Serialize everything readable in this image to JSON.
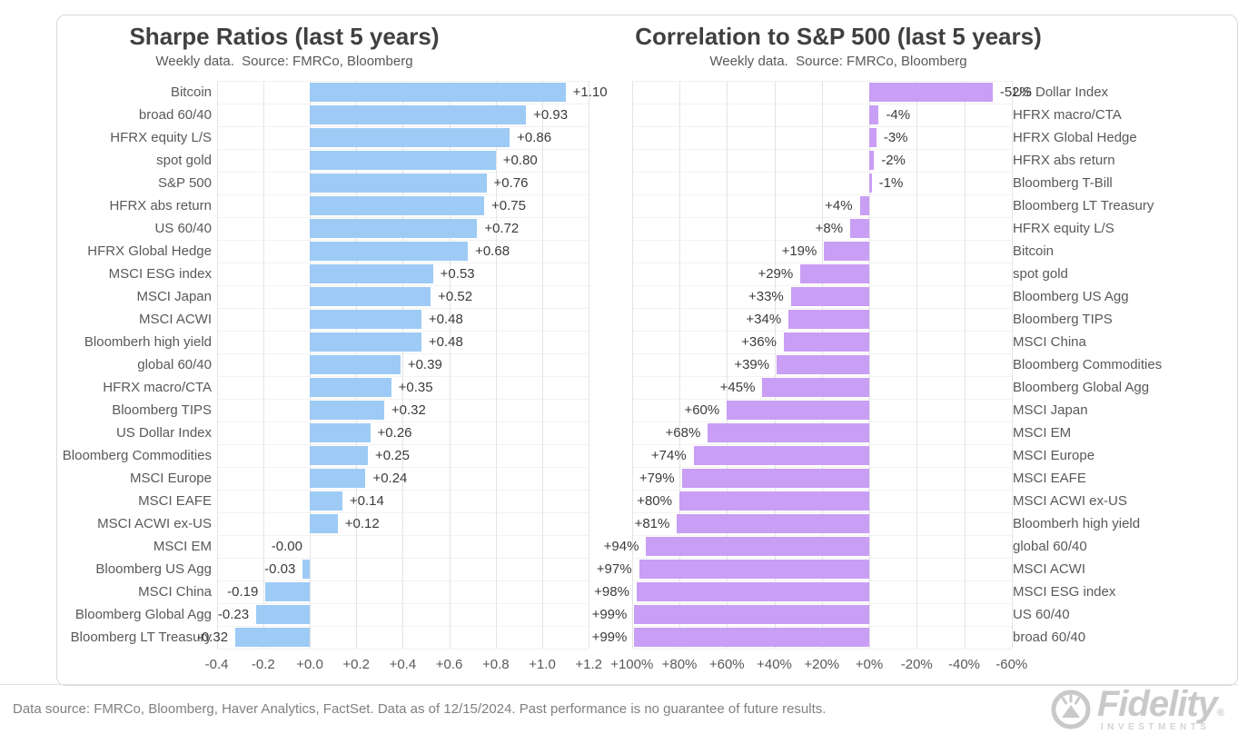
{
  "chart_data": [
    {
      "type": "bar",
      "orientation": "horizontal",
      "title": "Sharpe Ratios (last 5 years)",
      "subtitle": "Weekly data.  Source: FMRCo, Bloomberg",
      "bar_color": "#9DCBF5",
      "axis_reversed": false,
      "grid": true,
      "xlim": [
        -0.4,
        1.2
      ],
      "xticks": [
        {
          "label": "-0.4",
          "value": -0.4
        },
        {
          "label": "-0.2",
          "value": -0.2
        },
        {
          "label": "+0.0",
          "value": 0.0
        },
        {
          "label": "+0.2",
          "value": 0.2
        },
        {
          "label": "+0.4",
          "value": 0.4
        },
        {
          "label": "+0.6",
          "value": 0.6
        },
        {
          "label": "+0.8",
          "value": 0.8
        },
        {
          "label": "+1.0",
          "value": 1.0
        },
        {
          "label": "+1.2",
          "value": 1.2
        }
      ],
      "rows": [
        {
          "category": "Bitcoin",
          "value": 1.1,
          "label": "+1.10"
        },
        {
          "category": "broad 60/40",
          "value": 0.93,
          "label": "+0.93"
        },
        {
          "category": "HFRX equity L/S",
          "value": 0.86,
          "label": "+0.86"
        },
        {
          "category": "spot gold",
          "value": 0.8,
          "label": "+0.80"
        },
        {
          "category": "S&P 500",
          "value": 0.76,
          "label": "+0.76"
        },
        {
          "category": "HFRX abs return",
          "value": 0.75,
          "label": "+0.75"
        },
        {
          "category": "US 60/40",
          "value": 0.72,
          "label": "+0.72"
        },
        {
          "category": "HFRX Global Hedge",
          "value": 0.68,
          "label": "+0.68"
        },
        {
          "category": "MSCI ESG index",
          "value": 0.53,
          "label": "+0.53"
        },
        {
          "category": "MSCI Japan",
          "value": 0.52,
          "label": "+0.52"
        },
        {
          "category": "MSCI ACWI",
          "value": 0.48,
          "label": "+0.48"
        },
        {
          "category": "Bloomberh high yield",
          "value": 0.48,
          "label": "+0.48"
        },
        {
          "category": "global 60/40",
          "value": 0.39,
          "label": "+0.39"
        },
        {
          "category": "HFRX macro/CTA",
          "value": 0.35,
          "label": "+0.35"
        },
        {
          "category": "Bloomberg TIPS",
          "value": 0.32,
          "label": "+0.32"
        },
        {
          "category": "US Dollar Index",
          "value": 0.26,
          "label": "+0.26"
        },
        {
          "category": "Bloomberg Commodities",
          "value": 0.25,
          "label": "+0.25"
        },
        {
          "category": "MSCI Europe",
          "value": 0.24,
          "label": "+0.24"
        },
        {
          "category": "MSCI EAFE",
          "value": 0.14,
          "label": "+0.14"
        },
        {
          "category": "MSCI ACWI ex-US",
          "value": 0.12,
          "label": "+0.12"
        },
        {
          "category": "MSCI EM",
          "value": -0.0,
          "label": "-0.00"
        },
        {
          "category": "Bloomberg US Agg",
          "value": -0.03,
          "label": "-0.03"
        },
        {
          "category": "MSCI China",
          "value": -0.19,
          "label": "-0.19"
        },
        {
          "category": "Bloomberg Global Agg",
          "value": -0.23,
          "label": "-0.23"
        },
        {
          "category": "Bloomberg LT Treasury",
          "value": -0.32,
          "label": "-0.32"
        }
      ]
    },
    {
      "type": "bar",
      "orientation": "horizontal",
      "title": "Correlation to S&P 500 (last 5 years)",
      "subtitle": "Weekly data.  Source: FMRCo, Bloomberg",
      "bar_color": "#C99EF5",
      "axis_reversed": true,
      "grid": true,
      "xlim": [
        100,
        -60
      ],
      "xticks": [
        {
          "label": "+100%",
          "value": 100
        },
        {
          "label": "+80%",
          "value": 80
        },
        {
          "label": "+60%",
          "value": 60
        },
        {
          "label": "+40%",
          "value": 40
        },
        {
          "label": "+20%",
          "value": 20
        },
        {
          "label": "+0%",
          "value": 0
        },
        {
          "label": "-20%",
          "value": -20
        },
        {
          "label": "-40%",
          "value": -40
        },
        {
          "label": "-60%",
          "value": -60
        }
      ],
      "rows": [
        {
          "category": "US Dollar Index",
          "value": -52,
          "label": "-52%"
        },
        {
          "category": "HFRX macro/CTA",
          "value": -4,
          "label": "-4%"
        },
        {
          "category": "HFRX Global Hedge",
          "value": -3,
          "label": "-3%"
        },
        {
          "category": "HFRX abs return",
          "value": -2,
          "label": "-2%"
        },
        {
          "category": "Bloomberg T-Bill",
          "value": -1,
          "label": "-1%"
        },
        {
          "category": "Bloomberg LT Treasury",
          "value": 4,
          "label": "+4%"
        },
        {
          "category": "HFRX equity L/S",
          "value": 8,
          "label": "+8%"
        },
        {
          "category": "Bitcoin",
          "value": 19,
          "label": "+19%"
        },
        {
          "category": "spot gold",
          "value": 29,
          "label": "+29%"
        },
        {
          "category": "Bloomberg US Agg",
          "value": 33,
          "label": "+33%"
        },
        {
          "category": "Bloomberg TIPS",
          "value": 34,
          "label": "+34%"
        },
        {
          "category": "MSCI China",
          "value": 36,
          "label": "+36%"
        },
        {
          "category": "Bloomberg Commodities",
          "value": 39,
          "label": "+39%"
        },
        {
          "category": "Bloomberg Global Agg",
          "value": 45,
          "label": "+45%"
        },
        {
          "category": "MSCI Japan",
          "value": 60,
          "label": "+60%"
        },
        {
          "category": "MSCI EM",
          "value": 68,
          "label": "+68%"
        },
        {
          "category": "MSCI Europe",
          "value": 74,
          "label": "+74%"
        },
        {
          "category": "MSCI EAFE",
          "value": 79,
          "label": "+79%"
        },
        {
          "category": "MSCI ACWI ex-US",
          "value": 80,
          "label": "+80%"
        },
        {
          "category": "Bloomberh high yield",
          "value": 81,
          "label": "+81%"
        },
        {
          "category": "global 60/40",
          "value": 94,
          "label": "+94%"
        },
        {
          "category": "MSCI ACWI",
          "value": 97,
          "label": "+97%"
        },
        {
          "category": "MSCI ESG index",
          "value": 98,
          "label": "+98%"
        },
        {
          "category": "US 60/40",
          "value": 99,
          "label": "+99%"
        },
        {
          "category": "broad 60/40",
          "value": 99,
          "label": "+99%"
        }
      ]
    }
  ],
  "footer": {
    "disclaimer": "Data source: FMRCo, Bloomberg, Haver Analytics, FactSet. Data as of 12/15/2024. Past performance is no guarantee of future results.",
    "logo": {
      "brand": "Fidelity",
      "registered": "®",
      "sub": "INVESTMENTS"
    }
  },
  "colors": {
    "sharpe_bar": "#9DCBF5",
    "correlation_bar": "#C99EF5",
    "title_text": "#404040",
    "axis_text": "#595959",
    "footer_text": "#808080",
    "panel_border": "#D9D9D9"
  }
}
